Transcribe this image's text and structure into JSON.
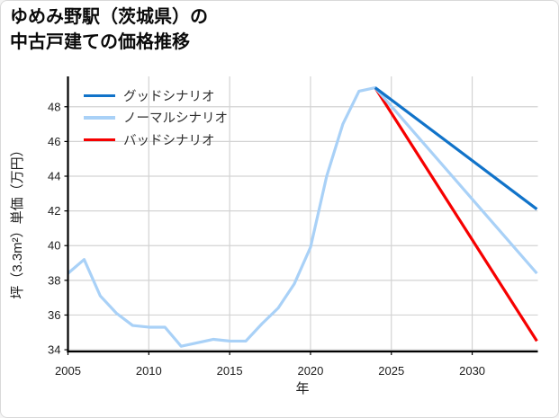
{
  "header": {
    "title_line1": "ゆめみ野駅（茨城県）の",
    "title_line2": "中古戸建ての価格推移"
  },
  "theme": {
    "background": "#ffffff",
    "frame_border": "#d9d9d9",
    "grid_color": "#d3d3d3",
    "axis_color": "#000000",
    "tick_label_color": "#1c1c1c",
    "good_color": "#1173c9",
    "normal_color": "#a9d1f7",
    "bad_color": "#f60000"
  },
  "chart_data": {
    "type": "line",
    "title": "ゆめみ野駅（茨城県）の中古戸建ての価格推移",
    "xlabel": "年",
    "ylabel": "坪（3.3m²）単価（万円）",
    "xlim": [
      2005,
      2034.06
    ],
    "ylim": [
      33.9,
      49.75
    ],
    "x_ticks": [
      2005,
      2010,
      2015,
      2020,
      2025,
      2030
    ],
    "y_ticks": [
      34,
      36,
      38,
      40,
      42,
      44,
      46,
      48
    ],
    "grid": true,
    "legend_position": "upper-left",
    "legend_frame": false,
    "series": [
      {
        "key": "good",
        "name": "グッドシナリオ",
        "color": "#1173c9",
        "x": [
          2024,
          2034
        ],
        "values": [
          49.1,
          42.1
        ]
      },
      {
        "key": "normal",
        "name": "ノーマルシナリオ",
        "color": "#a9d1f7",
        "x": [
          2005,
          2006,
          2007,
          2008,
          2009,
          2010,
          2011,
          2012,
          2013,
          2014,
          2015,
          2016,
          2017,
          2018,
          2019,
          2020,
          2021,
          2022,
          2023,
          2024,
          2034
        ],
        "values": [
          38.4,
          39.2,
          37.1,
          36.1,
          35.4,
          35.3,
          35.3,
          34.2,
          34.4,
          34.6,
          34.5,
          34.5,
          35.5,
          36.4,
          37.8,
          39.9,
          44.0,
          47.0,
          48.9,
          49.1,
          38.4
        ]
      },
      {
        "key": "bad",
        "name": "バッドシナリオ",
        "color": "#f60000",
        "x": [
          2024,
          2034
        ],
        "values": [
          49.1,
          34.5
        ]
      }
    ]
  }
}
